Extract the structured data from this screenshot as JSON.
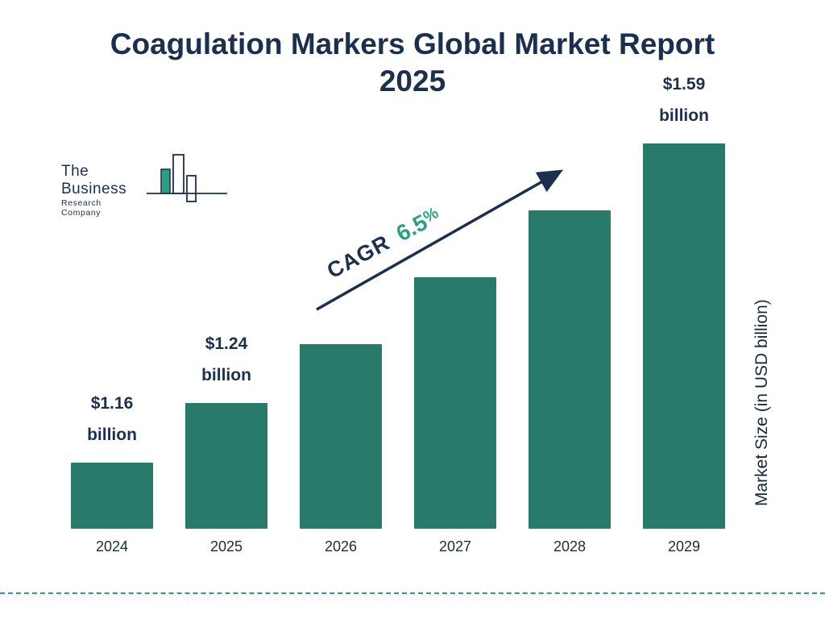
{
  "title": "Coagulation Markers Global Market Report 2025",
  "logo": {
    "line1": "The Business",
    "line2": "Research Company"
  },
  "cagr": {
    "label": "CAGR",
    "value": "6.5",
    "percent": "%"
  },
  "y_axis_label": "Market Size (in USD billion)",
  "colors": {
    "bar": "#287a6b",
    "navy": "#1b2f4e",
    "green": "#2aa184",
    "dashed_rule": "#2a9d8f"
  },
  "chart_data": {
    "type": "bar",
    "title": "Coagulation Markers Global Market Report 2025",
    "categories": [
      "2024",
      "2025",
      "2026",
      "2027",
      "2028",
      "2029"
    ],
    "values": [
      1.16,
      1.24,
      1.32,
      1.41,
      1.5,
      1.59
    ],
    "value_labels": [
      "$1.16 billion",
      "$1.24 billion",
      null,
      null,
      null,
      "$1.59 billion"
    ],
    "unit": "USD billion",
    "ylabel": "Market Size (in USD billion)",
    "cagr_percent": 6.5,
    "legend": "off",
    "grid": "off",
    "bar_color": "#287a6b"
  }
}
